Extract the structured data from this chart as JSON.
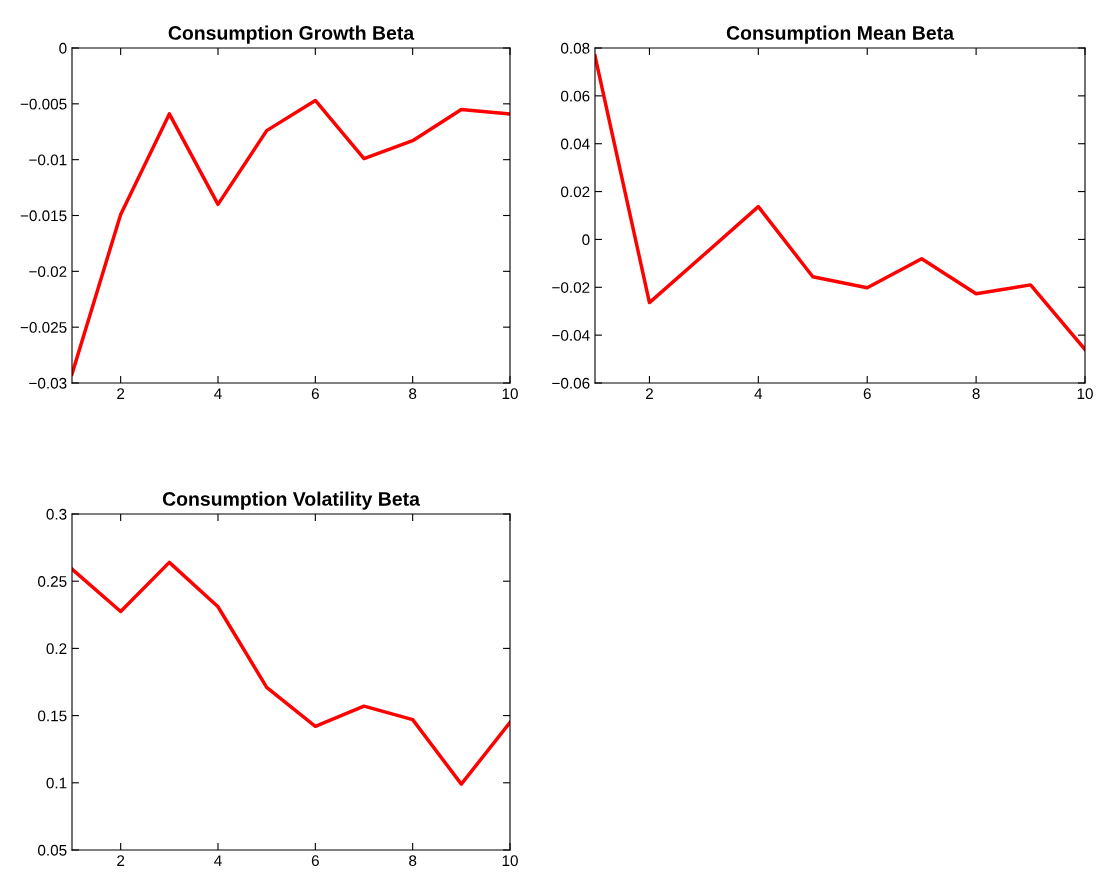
{
  "chart_data": [
    {
      "type": "line",
      "title": "Consumption Growth Beta",
      "x": [
        1,
        2,
        3,
        4,
        5,
        6,
        7,
        8,
        9,
        10
      ],
      "xlim": [
        1,
        10
      ],
      "xticks": [
        2,
        4,
        6,
        8,
        10
      ],
      "ylim": [
        -0.03,
        0
      ],
      "yticks": [
        -0.03,
        -0.025,
        -0.02,
        -0.015,
        -0.01,
        -0.005,
        0
      ],
      "grid": false,
      "legend": false,
      "series": [
        {
          "color": "#ff0000",
          "values": [
            -0.0292,
            -0.0149,
            -0.0059,
            -0.014,
            -0.0074,
            -0.0047,
            -0.0099,
            -0.0083,
            -0.0055,
            -0.0059
          ]
        }
      ]
    },
    {
      "type": "line",
      "title": "Consumption Mean Beta",
      "x": [
        1,
        2,
        3,
        4,
        5,
        6,
        7,
        8,
        9,
        10
      ],
      "xlim": [
        1,
        10
      ],
      "xticks": [
        2,
        4,
        6,
        8,
        10
      ],
      "ylim": [
        -0.06,
        0.08
      ],
      "yticks": [
        -0.06,
        -0.04,
        -0.02,
        0,
        0.02,
        0.04,
        0.06,
        0.08
      ],
      "grid": false,
      "legend": false,
      "series": [
        {
          "color": "#ff0000",
          "values": [
            0.0767,
            -0.0264,
            -0.0064,
            0.0137,
            -0.0156,
            -0.0202,
            -0.0081,
            -0.0227,
            -0.019,
            -0.046
          ]
        }
      ]
    },
    {
      "type": "line",
      "title": "Consumption Volatility Beta",
      "x": [
        1,
        2,
        3,
        4,
        5,
        6,
        7,
        8,
        9,
        10
      ],
      "xlim": [
        1,
        10
      ],
      "xticks": [
        2,
        4,
        6,
        8,
        10
      ],
      "ylim": [
        0.05,
        0.3
      ],
      "yticks": [
        0.05,
        0.1,
        0.15,
        0.2,
        0.25,
        0.3
      ],
      "grid": false,
      "legend": false,
      "series": [
        {
          "color": "#ff0000",
          "values": [
            0.259,
            0.2275,
            0.264,
            0.231,
            0.171,
            0.142,
            0.157,
            0.147,
            0.099,
            0.145
          ]
        }
      ]
    }
  ]
}
